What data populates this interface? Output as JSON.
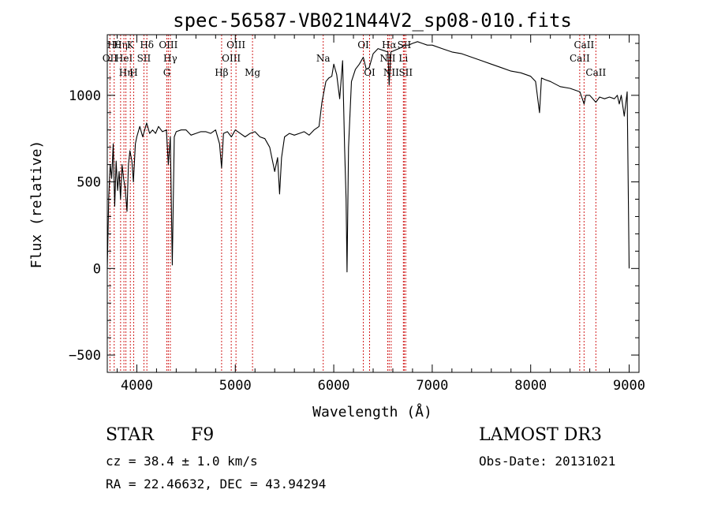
{
  "chart_data": {
    "type": "line",
    "title": "spec-56587-VB021N44V2_sp08-010.fits",
    "xlabel": "Wavelength (Å)",
    "ylabel": "Flux (relative)",
    "xlim": [
      3700,
      9100
    ],
    "ylim": [
      -600,
      1350
    ],
    "xticks": [
      4000,
      5000,
      6000,
      7000,
      8000,
      9000
    ],
    "yticks": [
      -500,
      0,
      500,
      1000
    ],
    "x_tick_labels": [
      "4000",
      "5000",
      "6000",
      "7000",
      "8000",
      "9000"
    ],
    "y_tick_labels": [
      "−500",
      "0",
      "500",
      "1000"
    ],
    "series": [
      {
        "color": "#000000",
        "x": [
          3700,
          3715,
          3730,
          3745,
          3760,
          3775,
          3790,
          3805,
          3820,
          3835,
          3850,
          3865,
          3880,
          3900,
          3915,
          3930,
          3950,
          3965,
          3985,
          4000,
          4030,
          4060,
          4100,
          4130,
          4160,
          4190,
          4220,
          4260,
          4300,
          4320,
          4340,
          4360,
          4380,
          4400,
          4450,
          4500,
          4550,
          4600,
          4650,
          4700,
          4750,
          4800,
          4840,
          4861,
          4880,
          4920,
          4960,
          5000,
          5050,
          5100,
          5150,
          5200,
          5250,
          5300,
          5350,
          5400,
          5430,
          5450,
          5470,
          5500,
          5550,
          5600,
          5650,
          5700,
          5750,
          5800,
          5850,
          5880,
          5900,
          5920,
          5950,
          5980,
          6000,
          6030,
          6060,
          6090,
          6110,
          6125,
          6135,
          6150,
          6180,
          6220,
          6260,
          6300,
          6330,
          6360,
          6400,
          6450,
          6500,
          6550,
          6563,
          6580,
          6620,
          6660,
          6700,
          6720,
          6760,
          6800,
          6850,
          6900,
          6950,
          7000,
          7100,
          7200,
          7300,
          7400,
          7500,
          7600,
          7700,
          7800,
          7900,
          8000,
          8050,
          8090,
          8110,
          8150,
          8200,
          8300,
          8400,
          8500,
          8542,
          8560,
          8600,
          8662,
          8700,
          8750,
          8800,
          8850,
          8880,
          8900,
          8920,
          8950,
          8980,
          9000
        ],
        "y": [
          0,
          420,
          600,
          520,
          720,
          360,
          620,
          450,
          560,
          400,
          600,
          520,
          470,
          330,
          600,
          680,
          620,
          500,
          720,
          760,
          820,
          760,
          840,
          780,
          800,
          780,
          820,
          790,
          800,
          600,
          760,
          20,
          760,
          790,
          800,
          800,
          770,
          780,
          790,
          790,
          780,
          800,
          720,
          580,
          780,
          790,
          760,
          800,
          780,
          760,
          780,
          790,
          760,
          750,
          700,
          560,
          640,
          430,
          640,
          760,
          780,
          770,
          780,
          790,
          770,
          800,
          820,
          960,
          1020,
          1080,
          1100,
          1110,
          1180,
          1120,
          980,
          1200,
          700,
          400,
          -20,
          700,
          1080,
          1150,
          1180,
          1220,
          1150,
          1160,
          1240,
          1270,
          1260,
          1250,
          1060,
          1250,
          1260,
          1270,
          1280,
          1290,
          1290,
          1300,
          1310,
          1300,
          1290,
          1290,
          1270,
          1250,
          1240,
          1220,
          1200,
          1180,
          1160,
          1140,
          1130,
          1110,
          1080,
          900,
          1100,
          1090,
          1080,
          1050,
          1040,
          1020,
          950,
          1000,
          1000,
          960,
          990,
          980,
          990,
          980,
          1000,
          950,
          1000,
          880,
          1020,
          0
        ]
      }
    ],
    "line_marks": [
      {
        "wave": 3770,
        "row": 1,
        "label": "Hθ"
      },
      {
        "wave": 3835,
        "row": 1,
        "label": "Hη"
      },
      {
        "wave": 3889,
        "row": 3,
        "label": "Hη"
      },
      {
        "wave": 3727,
        "row": 2,
        "label": "OII"
      },
      {
        "wave": 3869,
        "row": 2,
        "label": "HeI"
      },
      {
        "wave": 3934,
        "row": 1,
        "label": "K"
      },
      {
        "wave": 3968,
        "row": 3,
        "label": "H"
      },
      {
        "wave": 4072,
        "row": 2,
        "label": "SII"
      },
      {
        "wave": 4102,
        "row": 1,
        "label": "Hδ"
      },
      {
        "wave": 4320,
        "row": 1,
        "label": "OIII"
      },
      {
        "wave": 4340,
        "row": 2,
        "label": "Hγ"
      },
      {
        "wave": 4305,
        "row": 3,
        "label": "G"
      },
      {
        "wave": 4861,
        "row": 3,
        "label": "Hβ"
      },
      {
        "wave": 4959,
        "row": 2,
        "label": "OIII"
      },
      {
        "wave": 5007,
        "row": 1,
        "label": "OIII"
      },
      {
        "wave": 5175,
        "row": 3,
        "label": "Mg"
      },
      {
        "wave": 5893,
        "row": 2,
        "label": "Na"
      },
      {
        "wave": 6300,
        "row": 1,
        "label": "OI"
      },
      {
        "wave": 6364,
        "row": 3,
        "label": "OI"
      },
      {
        "wave": 6548,
        "row": 2,
        "label": "NII"
      },
      {
        "wave": 6563,
        "row": 1,
        "label": "Hα"
      },
      {
        "wave": 6583,
        "row": 3,
        "label": "NII"
      },
      {
        "wave": 6707,
        "row": 2,
        "label": "Li"
      },
      {
        "wave": 6716,
        "row": 1,
        "label": "SII"
      },
      {
        "wave": 6731,
        "row": 3,
        "label": "SII"
      },
      {
        "wave": 8498,
        "row": 2,
        "label": "CaII"
      },
      {
        "wave": 8542,
        "row": 1,
        "label": "CaII"
      },
      {
        "wave": 8662,
        "row": 3,
        "label": "CaII"
      }
    ]
  },
  "info": {
    "class": "STAR",
    "subclass": "F9",
    "survey": "LAMOST DR3",
    "cz": "cz = 38.4 ± 1.0 km/s",
    "obs_date": "Obs-Date: 20131021",
    "radec": "RA =  22.46632, DEC =  43.94294"
  }
}
